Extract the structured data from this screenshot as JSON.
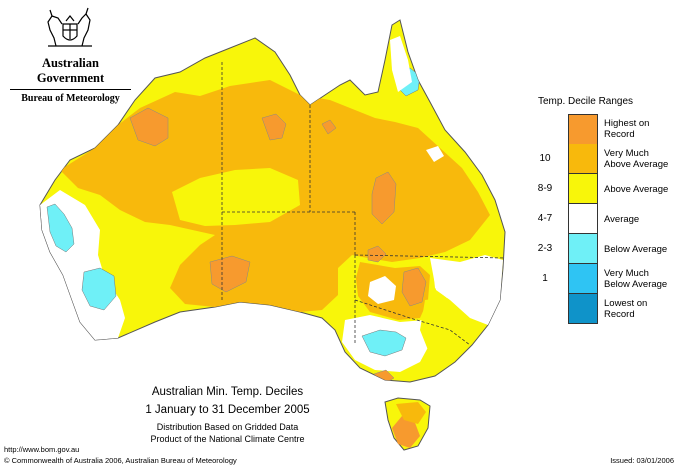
{
  "header": {
    "government": "Australian Government",
    "bureau": "Bureau of Meteorology"
  },
  "map": {
    "title": "Australian Min. Temp. Deciles",
    "period": "1 January to 31 December 2005",
    "note_line1": "Distribution Based on Gridded Data",
    "note_line2": "Product of the National Climate Centre"
  },
  "legend": {
    "title": "Temp. Decile Ranges",
    "items": [
      {
        "key": "",
        "label_line1": "Highest on",
        "label_line2": "Record",
        "color": "#f79a2e"
      },
      {
        "key": "10",
        "label_line1": "Very Much",
        "label_line2": "Above Average",
        "color": "#f8b90c"
      },
      {
        "key": "8-9",
        "label_line1": "Above Average",
        "label_line2": "",
        "color": "#f8f60a"
      },
      {
        "key": "4-7",
        "label_line1": "Average",
        "label_line2": "",
        "color": "#ffffff"
      },
      {
        "key": "2-3",
        "label_line1": "Below Average",
        "label_line2": "",
        "color": "#6ff0f7"
      },
      {
        "key": "1",
        "label_line1": "Very Much",
        "label_line2": "Below Average",
        "color": "#2fc4f3"
      },
      {
        "key": "",
        "label_line1": "Lowest on",
        "label_line2": "Record",
        "color": "#0f93c9"
      }
    ]
  },
  "footer": {
    "url": "http://www.bom.gov.au",
    "copyright": "© Commonwealth of Australia 2006, Australian Bureau of Meteorology",
    "issued": "Issued: 03/01/2006"
  }
}
